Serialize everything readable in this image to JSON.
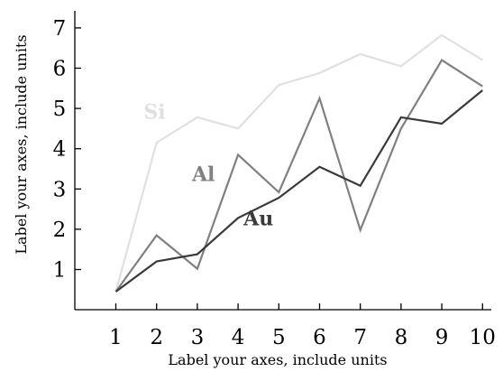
{
  "chart_data": {
    "type": "line",
    "xlabel": "Label your axes, include units",
    "ylabel": "Label your axes, include units",
    "xlim": [
      0.2,
      10.2
    ],
    "ylim": [
      -1.0,
      7.5
    ],
    "x_ticks": [
      1,
      2,
      3,
      4,
      5,
      6,
      7,
      8,
      9,
      10
    ],
    "y_ticks": [
      1,
      2,
      3,
      4,
      5,
      6,
      7
    ],
    "grid": false,
    "legend": "none",
    "series": [
      {
        "name": "Si",
        "color": "#e0e0e0",
        "x": [
          1,
          2,
          3,
          4,
          5,
          6,
          7,
          8,
          9,
          10
        ],
        "y": [
          0.45,
          4.15,
          4.78,
          4.5,
          5.58,
          5.88,
          6.35,
          6.05,
          6.82,
          6.2
        ]
      },
      {
        "name": "Al",
        "color": "#808080",
        "x": [
          1,
          2,
          3,
          4,
          5,
          6,
          7,
          8,
          9,
          10
        ],
        "y": [
          0.45,
          1.85,
          1.02,
          3.85,
          2.92,
          5.25,
          1.98,
          4.5,
          6.2,
          5.55
        ]
      },
      {
        "name": "Au",
        "color": "#3a3a3a",
        "x": [
          1,
          2,
          3,
          4,
          5,
          6,
          7,
          8,
          9,
          10
        ],
        "y": [
          0.45,
          1.2,
          1.38,
          2.28,
          2.78,
          3.55,
          3.08,
          4.78,
          4.62,
          5.45
        ]
      }
    ]
  }
}
